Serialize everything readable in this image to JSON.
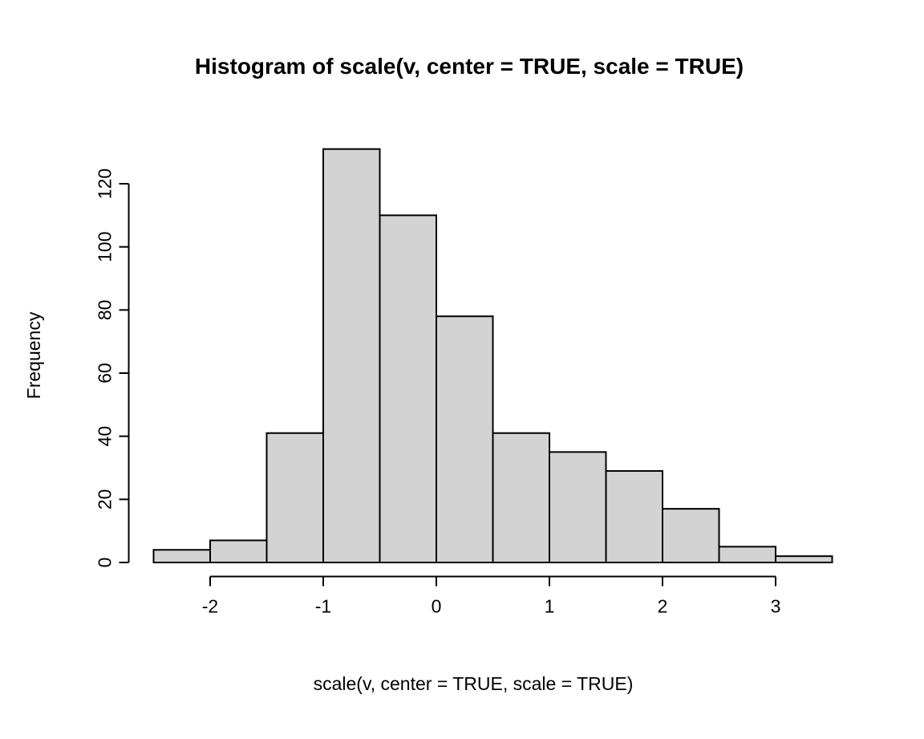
{
  "chart_data": {
    "type": "bar",
    "subtype": "histogram",
    "title": "Histogram of scale(v, center = TRUE, scale = TRUE)",
    "xlabel": "scale(v, center = TRUE, scale = TRUE)",
    "ylabel": "Frequency",
    "bin_edges": [
      -2.5,
      -2.0,
      -1.5,
      -1.0,
      -0.5,
      0.0,
      0.5,
      1.0,
      1.5,
      2.0,
      2.5,
      3.0,
      3.5
    ],
    "counts": [
      4,
      7,
      41,
      131,
      110,
      78,
      41,
      35,
      29,
      17,
      5,
      2
    ],
    "x_ticks": [
      -2,
      -1,
      0,
      1,
      2,
      3
    ],
    "x_tick_labels": [
      "-2",
      "-1",
      "0",
      "1",
      "2",
      "3"
    ],
    "y_ticks": [
      0,
      20,
      40,
      60,
      80,
      100,
      120
    ],
    "y_tick_labels": [
      "0",
      "20",
      "40",
      "60",
      "80",
      "100",
      "120"
    ],
    "xlim": [
      -2.5,
      3.5
    ],
    "ylim": [
      0,
      131
    ],
    "grid": false,
    "legend": false,
    "bar_fill": "#d3d3d3",
    "bar_stroke": "#000000",
    "axis_color": "#000000",
    "background": "#ffffff"
  }
}
